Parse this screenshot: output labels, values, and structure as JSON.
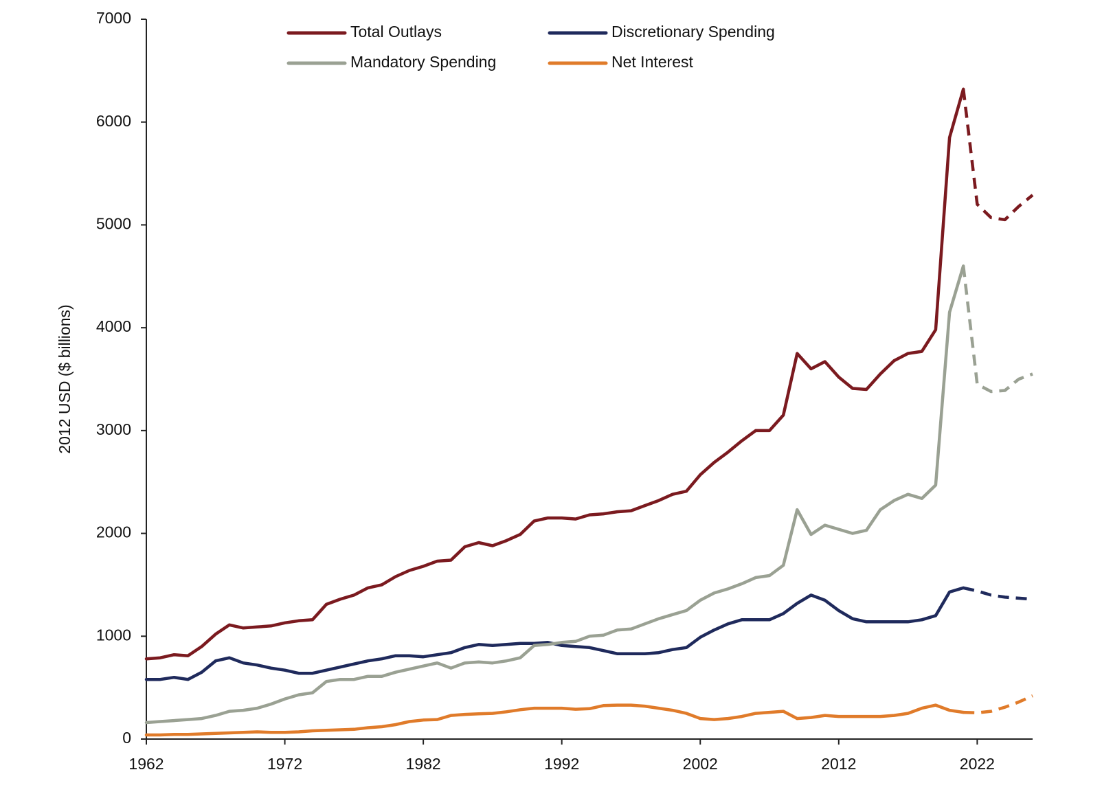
{
  "chart_data": {
    "type": "line",
    "y_label": "2012 USD ($ billions)",
    "x": [
      1962,
      1963,
      1964,
      1965,
      1966,
      1967,
      1968,
      1969,
      1970,
      1971,
      1972,
      1973,
      1974,
      1975,
      1976,
      1977,
      1978,
      1979,
      1980,
      1981,
      1982,
      1983,
      1984,
      1985,
      1986,
      1987,
      1988,
      1989,
      1990,
      1991,
      1992,
      1993,
      1994,
      1995,
      1996,
      1997,
      1998,
      1999,
      2000,
      2001,
      2002,
      2003,
      2004,
      2005,
      2006,
      2007,
      2008,
      2009,
      2010,
      2011,
      2012,
      2013,
      2014,
      2015,
      2016,
      2017,
      2018,
      2019,
      2020,
      2021,
      2022,
      2023,
      2024,
      2025,
      2026
    ],
    "dashed_from": 2021,
    "series": [
      {
        "name": "Total Outlays",
        "color": "#7b1a1f",
        "values": [
          780,
          790,
          820,
          810,
          900,
          1020,
          1110,
          1080,
          1090,
          1100,
          1130,
          1150,
          1160,
          1310,
          1360,
          1400,
          1470,
          1500,
          1580,
          1640,
          1680,
          1730,
          1740,
          1870,
          1910,
          1880,
          1930,
          1990,
          2120,
          2150,
          2150,
          2140,
          2180,
          2190,
          2210,
          2220,
          2270,
          2320,
          2380,
          2410,
          2570,
          2690,
          2790,
          2900,
          3000,
          3000,
          3150,
          3750,
          3600,
          3670,
          3520,
          3410,
          3400,
          3550,
          3680,
          3750,
          3770,
          3980,
          5850,
          6320,
          5200,
          5070,
          5050,
          5180,
          5290
        ]
      },
      {
        "name": "Discretionary Spending",
        "color": "#1f2a5c",
        "values": [
          580,
          580,
          600,
          580,
          650,
          760,
          790,
          740,
          720,
          690,
          670,
          640,
          640,
          670,
          700,
          730,
          760,
          780,
          810,
          810,
          800,
          820,
          840,
          890,
          920,
          910,
          920,
          930,
          930,
          940,
          910,
          900,
          890,
          860,
          830,
          830,
          830,
          840,
          870,
          890,
          990,
          1060,
          1120,
          1160,
          1160,
          1160,
          1220,
          1320,
          1400,
          1350,
          1250,
          1170,
          1140,
          1140,
          1140,
          1140,
          1160,
          1200,
          1430,
          1470,
          1440,
          1400,
          1380,
          1370,
          1360
        ]
      },
      {
        "name": "Mandatory Spending",
        "color": "#9aa193",
        "values": [
          160,
          170,
          180,
          190,
          200,
          230,
          270,
          280,
          300,
          340,
          390,
          430,
          450,
          560,
          580,
          580,
          610,
          610,
          650,
          680,
          710,
          740,
          690,
          740,
          750,
          740,
          760,
          790,
          910,
          920,
          940,
          950,
          1000,
          1010,
          1060,
          1070,
          1120,
          1170,
          1210,
          1250,
          1350,
          1420,
          1460,
          1510,
          1570,
          1590,
          1690,
          2230,
          1990,
          2080,
          2040,
          2000,
          2030,
          2230,
          2320,
          2380,
          2340,
          2470,
          4150,
          4600,
          3450,
          3380,
          3390,
          3500,
          3550
        ]
      },
      {
        "name": "Net Interest",
        "color": "#e07b2a",
        "values": [
          40,
          40,
          45,
          45,
          50,
          55,
          60,
          65,
          70,
          65,
          65,
          70,
          80,
          85,
          90,
          95,
          110,
          120,
          140,
          170,
          185,
          190,
          230,
          240,
          245,
          250,
          265,
          285,
          300,
          300,
          300,
          290,
          295,
          325,
          330,
          330,
          320,
          300,
          280,
          250,
          200,
          190,
          200,
          220,
          250,
          260,
          270,
          200,
          210,
          230,
          220,
          220,
          220,
          220,
          230,
          250,
          300,
          330,
          280,
          260,
          255,
          270,
          310,
          360,
          420
        ]
      }
    ],
    "xlim": [
      1962,
      2026
    ],
    "xticks": [
      1962,
      1972,
      1982,
      1992,
      2002,
      2012,
      2022
    ],
    "ylim": [
      0,
      7000
    ],
    "yticks": [
      0,
      1000,
      2000,
      3000,
      4000,
      5000,
      6000,
      7000
    ],
    "grid": false
  }
}
